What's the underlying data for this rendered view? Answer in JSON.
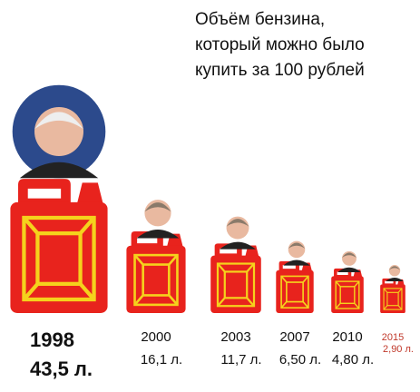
{
  "chart_data": {
    "type": "pictograph",
    "title": [
      "Объём бензина,",
      "который можно было",
      "купить за 100 рублей"
    ],
    "categories": [
      "1998",
      "2000",
      "2003",
      "2007",
      "2010",
      "2015"
    ],
    "values": [
      43.5,
      16.1,
      11.7,
      6.5,
      4.8,
      2.9
    ],
    "value_labels": [
      "43,5 л.",
      "16,1 л.",
      "11,7 л.",
      "6,50 л.",
      "4,80 л.",
      "2,90 л."
    ],
    "color": "#e8231d"
  }
}
